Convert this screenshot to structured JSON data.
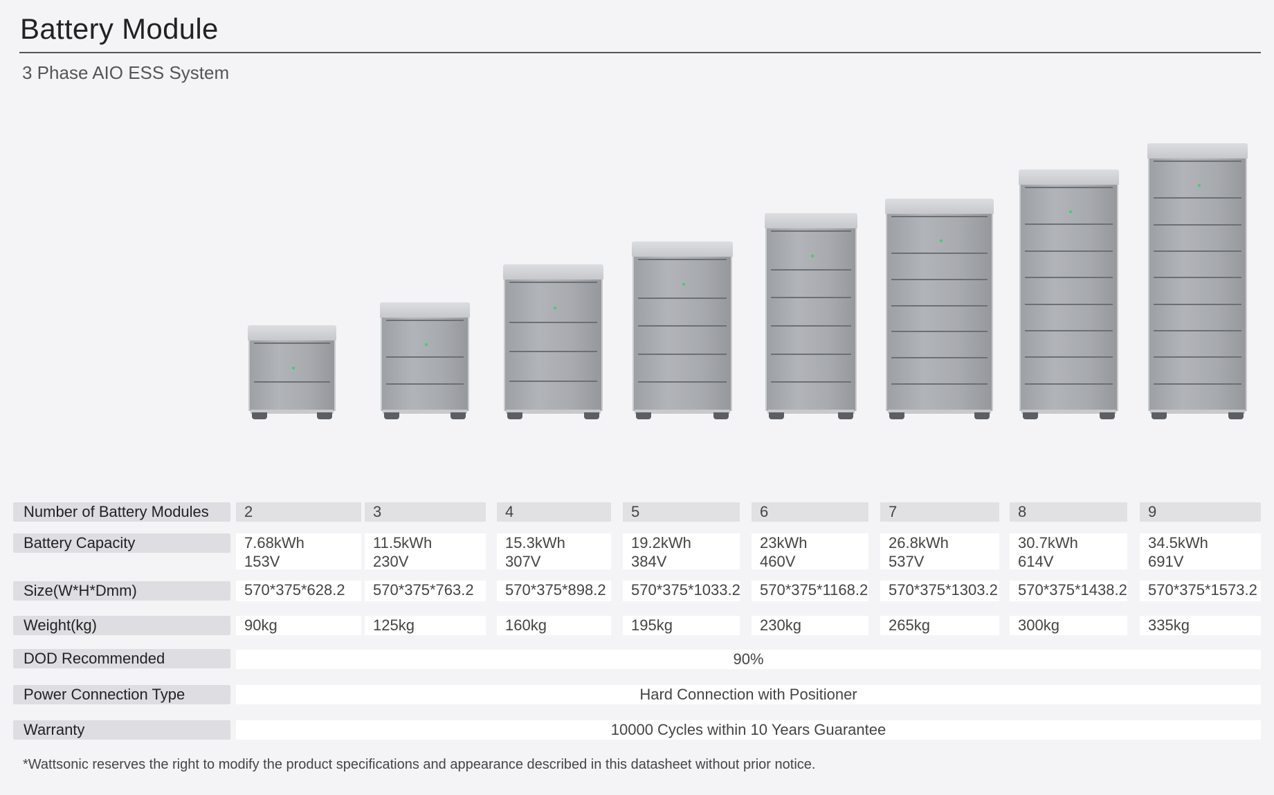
{
  "title": "Battery Module",
  "subtitle": "3 Phase AIO ESS System",
  "images": {
    "icon": "battery-module-stack-icon",
    "led_color": "#3bd36b"
  },
  "table": {
    "rows": [
      {
        "label": "Number of Battery Modules",
        "values": [
          "2",
          "3",
          "4",
          "5",
          "6",
          "7",
          "8",
          "9"
        ]
      },
      {
        "label": "Battery Capacity",
        "values": [
          [
            "7.68kWh",
            "153V"
          ],
          [
            "11.5kWh",
            "230V"
          ],
          [
            "15.3kWh",
            "307V"
          ],
          [
            "19.2kWh",
            "384V"
          ],
          [
            "23kWh",
            "460V"
          ],
          [
            "26.8kWh",
            "537V"
          ],
          [
            "30.7kWh",
            "614V"
          ],
          [
            "34.5kWh",
            "691V"
          ]
        ]
      },
      {
        "label": "Size(W*H*Dmm)",
        "values": [
          "570*375*628.2",
          "570*375*763.2",
          "570*375*898.2",
          "570*375*1033.2",
          "570*375*1168.2",
          "570*375*1303.2",
          "570*375*1438.2",
          "570*375*1573.2"
        ]
      },
      {
        "label": "Weight(kg)",
        "values": [
          "90kg",
          "125kg",
          "160kg",
          "195kg",
          "230kg",
          "265kg",
          "300kg",
          "335kg"
        ]
      },
      {
        "label": "DOD Recommended",
        "value": "90%"
      },
      {
        "label": "Power Connection Type",
        "value": "Hard Connection with Positioner"
      },
      {
        "label": "Warranty",
        "value": "10000 Cycles within 10 Years Guarantee"
      }
    ]
  },
  "footnote": "*Wattsonic reserves the right to modify the product specifications and appearance described in this datasheet without prior notice."
}
